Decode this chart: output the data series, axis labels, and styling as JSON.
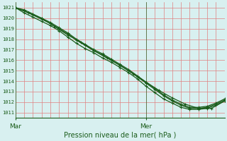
{
  "title": "Pression niveau de la mer( hPa )",
  "xlabel_mar": "Mar",
  "xlabel_mer": "Mer",
  "bg_color": "#d8f0f0",
  "grid_color_v": "#e08080",
  "grid_color_h": "#e08080",
  "line_color": "#1a5c1a",
  "ylim_min": 1010.5,
  "ylim_max": 1021.5,
  "yticks": [
    1011,
    1012,
    1013,
    1014,
    1015,
    1016,
    1017,
    1018,
    1019,
    1020,
    1021
  ],
  "xlim_min": 0,
  "xlim_max": 48,
  "mar_x": 0,
  "mer_x": 30,
  "n_vgrid": 25,
  "line1_x": [
    0,
    2,
    4,
    6,
    8,
    10,
    12,
    14,
    16,
    18,
    20,
    22,
    24,
    26,
    28,
    30,
    32,
    34,
    36,
    38,
    40,
    42,
    44,
    46,
    48
  ],
  "line1_y": [
    1021,
    1020.7,
    1020.3,
    1019.9,
    1019.5,
    1019.0,
    1018.5,
    1017.9,
    1017.4,
    1016.9,
    1016.5,
    1016.0,
    1015.5,
    1015.0,
    1014.4,
    1013.8,
    1013.2,
    1012.6,
    1012.1,
    1011.7,
    1011.4,
    1011.4,
    1011.5,
    1011.8,
    1012.2
  ],
  "line2_x": [
    0,
    2,
    4,
    6,
    8,
    10,
    12,
    14,
    16,
    18,
    20,
    22,
    24,
    26,
    28,
    30,
    32,
    34,
    36,
    38,
    40,
    42,
    44,
    46,
    48
  ],
  "line2_y": [
    1021,
    1020.5,
    1020.1,
    1019.7,
    1019.3,
    1018.8,
    1018.2,
    1017.6,
    1017.1,
    1016.7,
    1016.2,
    1015.8,
    1015.3,
    1014.8,
    1014.2,
    1013.5,
    1012.9,
    1012.3,
    1011.9,
    1011.5,
    1011.3,
    1011.3,
    1011.4,
    1011.7,
    1012.1
  ],
  "line3_x": [
    0,
    2,
    4,
    6,
    8,
    10,
    12,
    14,
    16,
    18,
    20,
    22,
    24,
    26,
    28,
    30,
    32,
    34,
    36,
    38,
    40,
    42,
    44,
    46,
    48
  ],
  "line3_y": [
    1021,
    1020.8,
    1020.4,
    1020.0,
    1019.6,
    1019.1,
    1018.6,
    1018.0,
    1017.5,
    1017.0,
    1016.6,
    1016.1,
    1015.6,
    1015.1,
    1014.5,
    1013.9,
    1013.3,
    1012.7,
    1012.2,
    1011.8,
    1011.5,
    1011.5,
    1011.6,
    1011.9,
    1012.3
  ],
  "line4_x": [
    0,
    3,
    6,
    9,
    12,
    15,
    18,
    21,
    24,
    27,
    30,
    33,
    36,
    39,
    42,
    45,
    48
  ],
  "line4_y": [
    1021,
    1020.5,
    1020.0,
    1019.2,
    1018.4,
    1017.7,
    1016.9,
    1016.2,
    1015.5,
    1014.7,
    1013.9,
    1013.1,
    1012.4,
    1011.8,
    1011.4,
    1011.4,
    1012.1
  ]
}
